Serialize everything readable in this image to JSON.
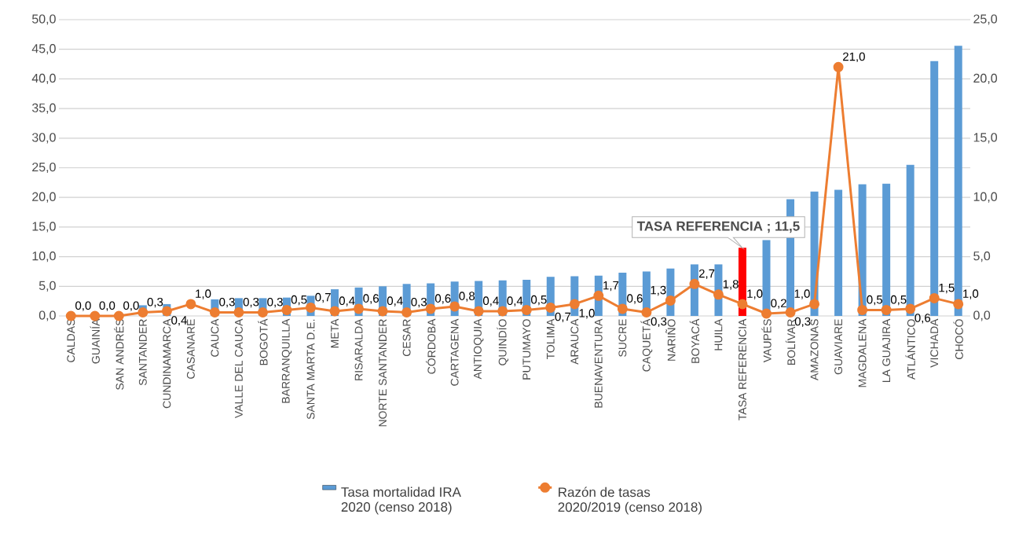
{
  "chart_data": {
    "type": "bar",
    "categories": [
      "CALDAS",
      "GUAINÍA",
      "SAN ANDRÉS",
      "SANTANDER",
      "CUNDINAMARCA",
      "CASANARE",
      "CAUCA",
      "VALLE DEL CAUCA",
      "BOGOTÁ",
      "BARRANQUILLA",
      "SANTA MARTA D.E.",
      "META",
      "RISARALDA",
      "NORTE SANTANDER",
      "CESAR",
      "CÓRDOBA",
      "CARTAGENA",
      "ANTIOQUIA",
      "QUINDÍO",
      "PUTUMAYO",
      "TOLIMA",
      "ARAUCA",
      "BUENAVENTURA",
      "SUCRE",
      "CAQUETÁ",
      "NARIÑO",
      "BOYACÁ",
      "HUILA",
      "TASA REFERENCIA",
      "VAUPÉS",
      "BOLÍVAR",
      "AMAZONAS",
      "GUAVIARE",
      "MAGDALENA",
      "LA GUAJIRA",
      "ATLÁNTICO",
      "VICHADA",
      "CHOCÓ"
    ],
    "series": [
      {
        "name": "Tasa mortalidad IRA 2020 (censo 2018)",
        "color": "#5b9bd5",
        "values": [
          0,
          0,
          0,
          1.8,
          2.0,
          null,
          2.8,
          3.0,
          3.0,
          3.1,
          3.4,
          4.5,
          4.8,
          5.0,
          5.4,
          5.5,
          5.8,
          5.9,
          6.0,
          6.1,
          6.6,
          6.7,
          6.8,
          7.3,
          7.5,
          8.0,
          8.7,
          8.7,
          11.5,
          12.8,
          19.7,
          21.0,
          21.3,
          22.2,
          22.3,
          25.5,
          43.0,
          45.6
        ],
        "colors": [
          "#5b9bd5",
          "#5b9bd5",
          "#5b9bd5",
          "#5b9bd5",
          "#5b9bd5",
          "#5b9bd5",
          "#5b9bd5",
          "#5b9bd5",
          "#5b9bd5",
          "#5b9bd5",
          "#5b9bd5",
          "#5b9bd5",
          "#5b9bd5",
          "#5b9bd5",
          "#5b9bd5",
          "#5b9bd5",
          "#5b9bd5",
          "#5b9bd5",
          "#5b9bd5",
          "#5b9bd5",
          "#5b9bd5",
          "#5b9bd5",
          "#5b9bd5",
          "#5b9bd5",
          "#5b9bd5",
          "#5b9bd5",
          "#5b9bd5",
          "#5b9bd5",
          "#ff0000",
          "#5b9bd5",
          "#5b9bd5",
          "#5b9bd5",
          "#5b9bd5",
          "#5b9bd5",
          "#5b9bd5",
          "#5b9bd5",
          "#5b9bd5",
          "#5b9bd5"
        ]
      },
      {
        "name": "Razón de tasas 2020/2019 (censo 2018)",
        "type": "line",
        "axis": "y2",
        "color": "#ed7d31",
        "marker": "circle",
        "values": [
          0.0,
          0.0,
          0.0,
          0.3,
          0.4,
          1.0,
          0.3,
          0.3,
          0.3,
          0.5,
          0.7,
          0.4,
          0.6,
          0.4,
          0.3,
          0.6,
          0.8,
          0.4,
          0.4,
          0.5,
          0.7,
          1.0,
          1.7,
          0.6,
          0.3,
          1.3,
          2.7,
          1.8,
          1.0,
          0.2,
          0.3,
          1.0,
          21.0,
          0.5,
          0.5,
          0.6,
          1.5,
          1.0
        ],
        "value_labels": [
          "0,0",
          "0,0",
          "0,0",
          "0,3",
          "0,4",
          "1,0",
          "0,3",
          "0,3",
          "0,3",
          "0,5",
          "0,7",
          "0,4",
          "0,6",
          "0,4",
          "0,3",
          "0,6",
          "0,8",
          "0,4",
          "0,4",
          "0,5",
          "0,7",
          "1,0",
          "1,7",
          "0,6",
          "0,3",
          "1,3",
          "2,7",
          "1,8",
          "1,0",
          "0,2",
          "0,3",
          "1,0",
          "21,0",
          "0,5",
          "0,5",
          "0,6",
          "1,5",
          "1,0"
        ]
      }
    ],
    "ylim": [
      0,
      50
    ],
    "yticks": [
      {
        "value": 0,
        "label": "0,0"
      },
      {
        "value": 5,
        "label": "5,0"
      },
      {
        "value": 10,
        "label": "10,0"
      },
      {
        "value": 15,
        "label": "15,0"
      },
      {
        "value": 20,
        "label": "20,0"
      },
      {
        "value": 25,
        "label": "25,0"
      },
      {
        "value": 30,
        "label": "30,0"
      },
      {
        "value": 35,
        "label": "35,0"
      },
      {
        "value": 40,
        "label": "40,0"
      },
      {
        "value": 45,
        "label": "45,0"
      },
      {
        "value": 50,
        "label": "50,0"
      }
    ],
    "y2lim": [
      0,
      25
    ],
    "y2ticks": [
      {
        "value": 0,
        "label": "0,0"
      },
      {
        "value": 5,
        "label": "5,0"
      },
      {
        "value": 10,
        "label": "10,0"
      },
      {
        "value": 15,
        "label": "15,0"
      },
      {
        "value": 20,
        "label": "20,0"
      },
      {
        "value": 25,
        "label": "25,0"
      }
    ],
    "grid": "y",
    "legend": "bottom",
    "annotations": [
      {
        "text": "TASA REFERENCIA ; 11,5",
        "x": "TASA REFERENCIA",
        "y": 11.5
      }
    ]
  }
}
